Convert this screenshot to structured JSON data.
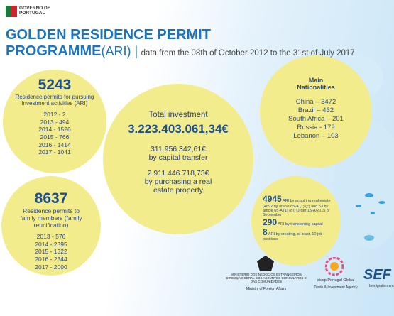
{
  "logo": {
    "text": "GOVERNO DE PORTUGAL"
  },
  "header": {
    "title_line1": "GOLDEN RESIDENCE PERMIT",
    "title_bold": "PROGRAMME",
    "title_paren": "(ARI) |",
    "subtitle": "data from the 08th of October 2012 to the 31st of July 2017"
  },
  "ari": {
    "total": "5243",
    "label": "Residence permits for pursuing investment activities (ARI)",
    "years": [
      "2012 - 2",
      "2013 - 494",
      "2014 - 1526",
      "2015 - 766",
      "2016 - 1414",
      "2017 - 1041"
    ]
  },
  "family": {
    "total": "8637",
    "label": "Residence permits to family members (family reunification)",
    "years": [
      "2013 - 576",
      "2014 - 2395",
      "2015 - 1322",
      "2016 - 2344",
      "2017 - 2000"
    ]
  },
  "investment": {
    "heading": "Total investment",
    "total": "3.223.403.061,34€",
    "capital_amount": "311.956.342,61€",
    "capital_label": "by capital transfer",
    "property_amount": "2.911.446.718,73€",
    "property_label": "by purchasing a real estate property"
  },
  "nationalities": {
    "heading": "Main Nationalities",
    "items": [
      "China – 3472",
      "Brazil – 432",
      "South Africa – 201",
      "Russia - 179",
      "Lebanon – 103"
    ]
  },
  "breakdown": {
    "items": [
      {
        "value": "4945",
        "label": "ARI by acquiring real estate (4892 by article 65-A (1) (c) and 53 by article 65-A (1) (d)) Order 15-A/2015 of September"
      },
      {
        "value": "290",
        "label": "ARI by transferring capital"
      },
      {
        "value": "8",
        "label": "ARI by creating, at least, 10 job positions"
      }
    ]
  },
  "footer": {
    "ministry": "MINISTÉRIO DOS NEGÓCIOS ESTRANGEIROS DIRECÇÃO GERAL DOS ASSUNTOS CONSULARES E DAS COMUNIDADES",
    "ministry_en": "Ministry of Foreign Affairs",
    "aicep": "aicep Portugal Global",
    "aicep_en": "Trade & Investment Agency",
    "sef": "SEF",
    "sef_en": "Immigration and Borders Service"
  }
}
